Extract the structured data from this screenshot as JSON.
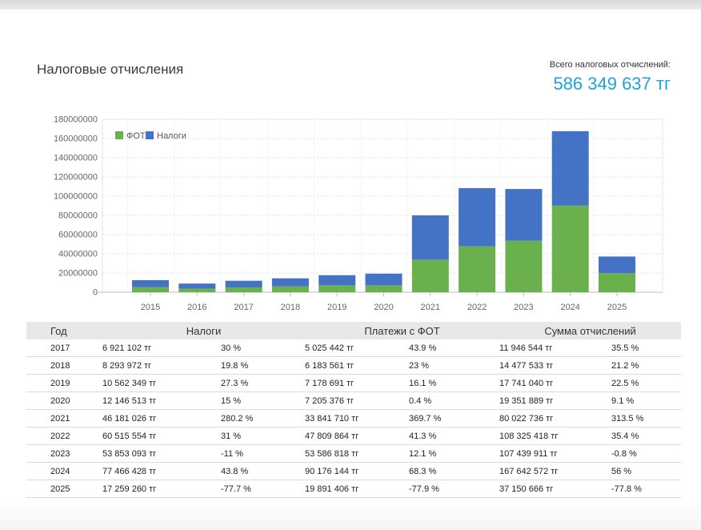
{
  "page": {
    "title": "Налоговые отчисления",
    "total_label": "Всего налоговых отчислений:",
    "total_value": "586 349 637 тг"
  },
  "chart_data": {
    "type": "bar",
    "stacked": true,
    "categories": [
      "2015",
      "2016",
      "2017",
      "2018",
      "2019",
      "2020",
      "2021",
      "2022",
      "2023",
      "2024",
      "2025"
    ],
    "series": [
      {
        "name": "ФОТ",
        "color": "#6ab04c",
        "values": [
          5200000,
          3800000,
          5025442,
          6183561,
          7178691,
          7205376,
          33841710,
          47809864,
          53586818,
          90176144,
          19891406
        ]
      },
      {
        "name": "Налоги",
        "color": "#4472c4",
        "values": [
          7400000,
          5200000,
          6921102,
          8293972,
          10562349,
          12146513,
          46181026,
          60515554,
          53853093,
          77466428,
          17259260
        ]
      }
    ],
    "ylim": [
      0,
      180000000
    ],
    "yticks": [
      0,
      20000000,
      40000000,
      60000000,
      80000000,
      100000000,
      120000000,
      140000000,
      160000000,
      180000000
    ],
    "ytick_labels": [
      "0",
      "20000000",
      "40000000",
      "60000000",
      "80000000",
      "100000000",
      "120000000",
      "140000000",
      "160000000",
      "180000000"
    ],
    "legend_position": "top-left",
    "grid": true
  },
  "table": {
    "headers": [
      "Год",
      "Налоги",
      "Платежи с ФОТ",
      "Сумма отчислений"
    ],
    "rows": [
      {
        "year": "2017",
        "tax": "6 921 102 тг",
        "tax_pct": "30 %",
        "tax_sign": "pos",
        "fot": "5 025 442 тг",
        "fot_pct": "43.9 %",
        "fot_sign": "pos",
        "sum": "11 946 544 тг",
        "sum_pct": "35.5 %",
        "sum_sign": "pos"
      },
      {
        "year": "2018",
        "tax": "8 293 972 тг",
        "tax_pct": "19.8 %",
        "tax_sign": "pos",
        "fot": "6 183 561 тг",
        "fot_pct": "23 %",
        "fot_sign": "pos",
        "sum": "14 477 533 тг",
        "sum_pct": "21.2 %",
        "sum_sign": "pos"
      },
      {
        "year": "2019",
        "tax": "10 562 349 тг",
        "tax_pct": "27.3 %",
        "tax_sign": "pos",
        "fot": "7 178 691 тг",
        "fot_pct": "16.1 %",
        "fot_sign": "pos",
        "sum": "17 741 040 тг",
        "sum_pct": "22.5 %",
        "sum_sign": "pos"
      },
      {
        "year": "2020",
        "tax": "12 146 513 тг",
        "tax_pct": "15 %",
        "tax_sign": "pos",
        "fot": "7 205 376 тг",
        "fot_pct": "0.4 %",
        "fot_sign": "pos",
        "sum": "19 351 889 тг",
        "sum_pct": "9.1 %",
        "sum_sign": "pos"
      },
      {
        "year": "2021",
        "tax": "46 181 026 тг",
        "tax_pct": "280.2 %",
        "tax_sign": "pos",
        "fot": "33 841 710 тг",
        "fot_pct": "369.7 %",
        "fot_sign": "pos",
        "sum": "80 022 736 тг",
        "sum_pct": "313.5 %",
        "sum_sign": "pos"
      },
      {
        "year": "2022",
        "tax": "60 515 554 тг",
        "tax_pct": "31 %",
        "tax_sign": "pos",
        "fot": "47 809 864 тг",
        "fot_pct": "41.3 %",
        "fot_sign": "pos",
        "sum": "108 325 418 тг",
        "sum_pct": "35.4 %",
        "sum_sign": "pos"
      },
      {
        "year": "2023",
        "tax": "53 853 093 тг",
        "tax_pct": "-11 %",
        "tax_sign": "neg",
        "fot": "53 586 818 тг",
        "fot_pct": "12.1 %",
        "fot_sign": "pos",
        "sum": "107 439 911 тг",
        "sum_pct": "-0.8 %",
        "sum_sign": "neg"
      },
      {
        "year": "2024",
        "tax": "77 466 428 тг",
        "tax_pct": "43.8 %",
        "tax_sign": "pos",
        "fot": "90 176 144 тг",
        "fot_pct": "68.3 %",
        "fot_sign": "pos",
        "sum": "167 642 572 тг",
        "sum_pct": "56 %",
        "sum_sign": "pos"
      },
      {
        "year": "2025",
        "tax": "17 259 260 тг",
        "tax_pct": "-77.7 %",
        "tax_sign": "neg",
        "fot": "19 891 406 тг",
        "fot_pct": "-77.9 %",
        "fot_sign": "neg",
        "sum": "37 150 666 тг",
        "sum_pct": "-77.8 %",
        "sum_sign": "neg"
      }
    ]
  }
}
